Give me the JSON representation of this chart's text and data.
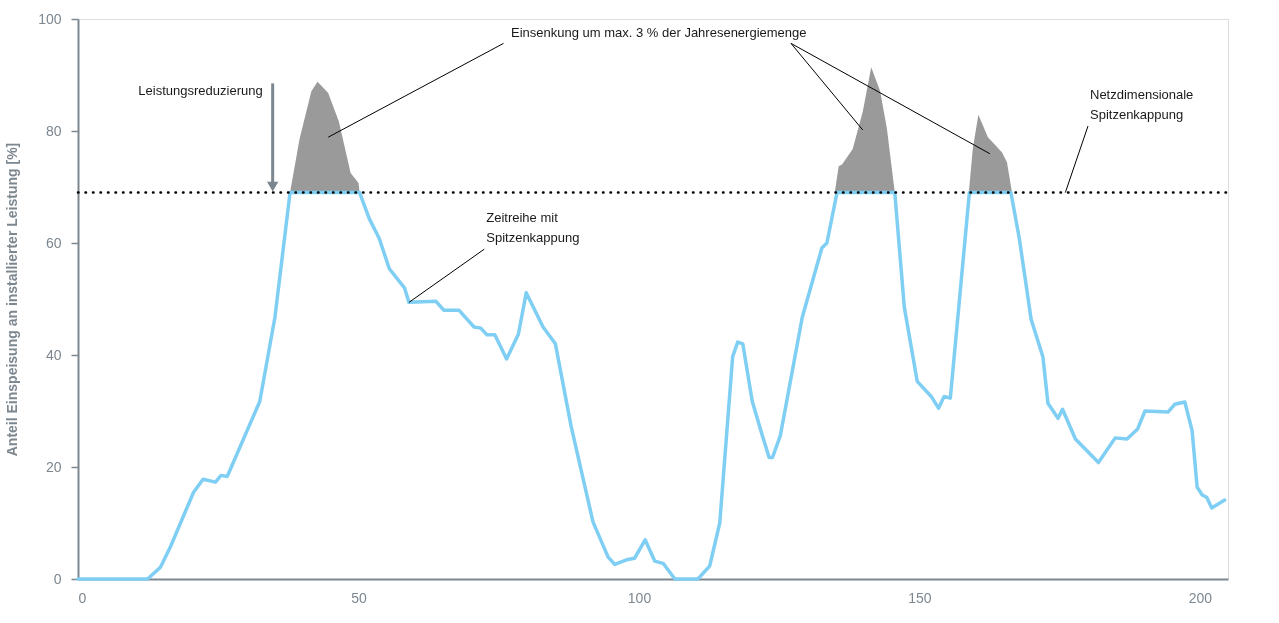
{
  "chart_data": {
    "type": "line",
    "ylabel": "Anteil Einspeisung an installierter Leistung [%]",
    "xlim": [
      0,
      205
    ],
    "ylim": [
      0,
      100
    ],
    "xticks": [
      0,
      50,
      100,
      150,
      200
    ],
    "yticks": [
      0,
      20,
      40,
      60,
      80,
      100
    ],
    "series": [
      {
        "color": "#7fcef3",
        "x": [
          0,
          12.4,
          14.7,
          16.5,
          20.6,
          22.3,
          24.5,
          25.5,
          26.6,
          32.4,
          35.1,
          37.8,
          50.2,
          51.9,
          53.7,
          55.5,
          58.2,
          59,
          63.8,
          65.2,
          67.9,
          70.6,
          71.8,
          72.9,
          74.3,
          76.4,
          78.5,
          79.9,
          82.9,
          85.1,
          87.9,
          91.8,
          94.5,
          95.7,
          98,
          99.2,
          101.1,
          102.8,
          104.3,
          106.4,
          110.5,
          112.6,
          114.4,
          116.7,
          117.6,
          118.5,
          120.2,
          122,
          123.2,
          123.8,
          125.2,
          129.1,
          132.6,
          133.5,
          135.3,
          145.6,
          147.3,
          149.6,
          152.1,
          153.4,
          154.4,
          155.5,
          158.9,
          166.3,
          167.8,
          169.9,
          172,
          172.9,
          174.7,
          175.5,
          177.8,
          181.9,
          184.9,
          187,
          188.9,
          190.2,
          194.3,
          195.5,
          197.3,
          198.6,
          199.5,
          200.4,
          201.2,
          202.1,
          204.4
        ],
        "values": [
          0,
          0,
          2.1,
          5.8,
          15.5,
          17.8,
          17.3,
          18.5,
          18.3,
          31.7,
          46.7,
          69,
          69,
          64.4,
          60.8,
          55.4,
          52,
          49.4,
          49.6,
          48,
          48,
          45,
          44.8,
          43.6,
          43.6,
          39.3,
          43.7,
          51.1,
          45,
          42,
          27.3,
          10.2,
          3.9,
          2.6,
          3.5,
          3.7,
          7,
          3.2,
          2.8,
          0,
          0,
          2.3,
          10,
          39.7,
          42.3,
          42,
          31.7,
          25.6,
          21.7,
          21.7,
          25.6,
          46.7,
          59.1,
          60,
          69,
          69,
          48.5,
          35.3,
          32.6,
          30.5,
          32.6,
          32.3,
          69,
          69,
          60.8,
          46.4,
          39.7,
          31.4,
          28.7,
          30.3,
          25,
          20.8,
          25.2,
          25,
          26.8,
          30,
          29.8,
          31.2,
          31.6,
          26.5,
          16.4,
          15,
          14.6,
          12.7,
          14.1
        ]
      },
      {
        "type": "area",
        "color": "#9a9a9a",
        "x": [
          37.8,
          39.5,
          41.6,
          42.7,
          44.6,
          46.5,
          48.6,
          50,
          50.2,
          50.3,
          134.9,
          135.6,
          136.2,
          138.1,
          139.9,
          141.4,
          143,
          144.2,
          145.6,
          145.7,
          158.8,
          159.5,
          160.5,
          162.2,
          164.7,
          165.6,
          166.5
        ],
        "values": [
          69,
          78.6,
          87.1,
          88.8,
          86.8,
          81.7,
          72.5,
          70.7,
          69,
          null,
          69,
          73.7,
          74,
          76.8,
          83.5,
          91.4,
          87.1,
          80.4,
          69,
          null,
          69,
          76.8,
          82.9,
          78.9,
          76.2,
          74.4,
          69
        ]
      }
    ],
    "ref_lines": [
      {
        "axis": "y",
        "value": 69,
        "color": "#000000",
        "line_style": "dotted"
      }
    ],
    "annotations": [
      {
        "text": "Leistungsreduzierung",
        "x": 34.7,
        "y": 69
      },
      "Einsenkung um max. 3 % der Jahresenergiemenge",
      {
        "text": "Zeitreihe mit\nSpitzenkappung",
        "x": 59,
        "y": 49.4
      },
      {
        "text": "Netzdimensionale\nSpitzenkappung",
        "x": 176,
        "y": 69
      }
    ]
  }
}
